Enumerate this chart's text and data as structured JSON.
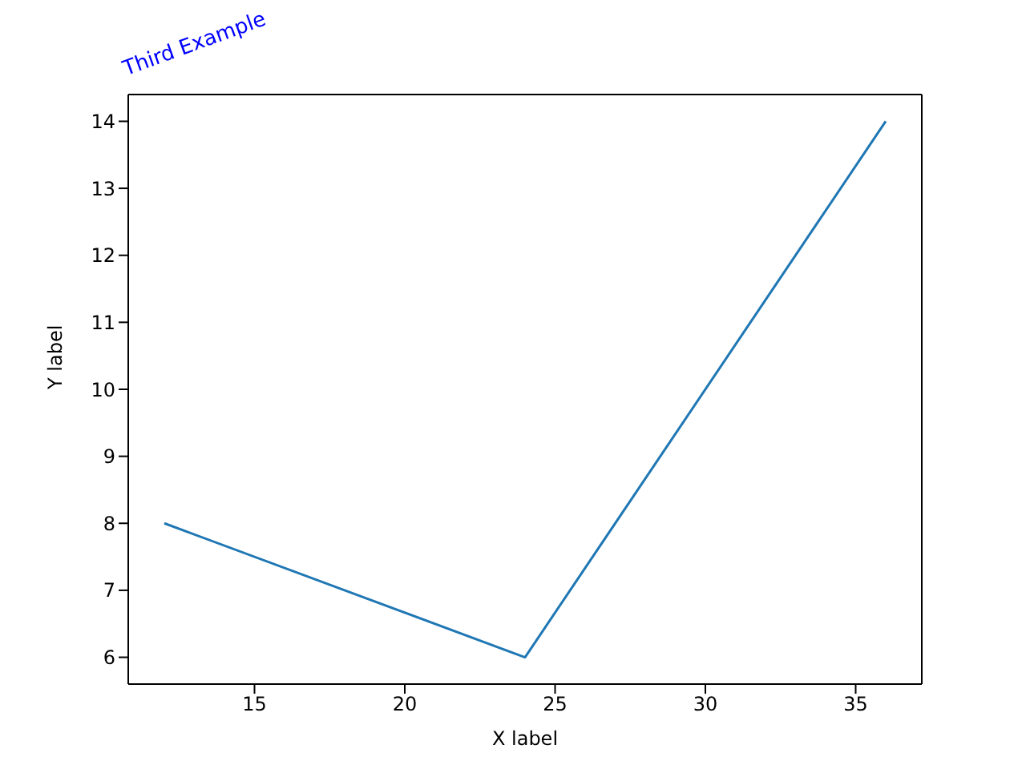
{
  "chart_data": {
    "type": "line",
    "title": "Third Example",
    "xlabel": "X label",
    "ylabel": "Y label",
    "x": [
      12,
      24,
      36
    ],
    "series": [
      {
        "color": "#1f77b4",
        "values": [
          8,
          6,
          14
        ]
      }
    ],
    "xlim": [
      10.8,
      37.2
    ],
    "xticks": [
      15,
      20,
      25,
      30,
      35
    ],
    "ylim": [
      5.6,
      14.4
    ],
    "yticks": [
      6,
      7,
      8,
      9,
      10,
      11,
      12,
      13,
      14
    ],
    "grid": false,
    "legend": false,
    "marker": "none",
    "line_style": "solid"
  }
}
